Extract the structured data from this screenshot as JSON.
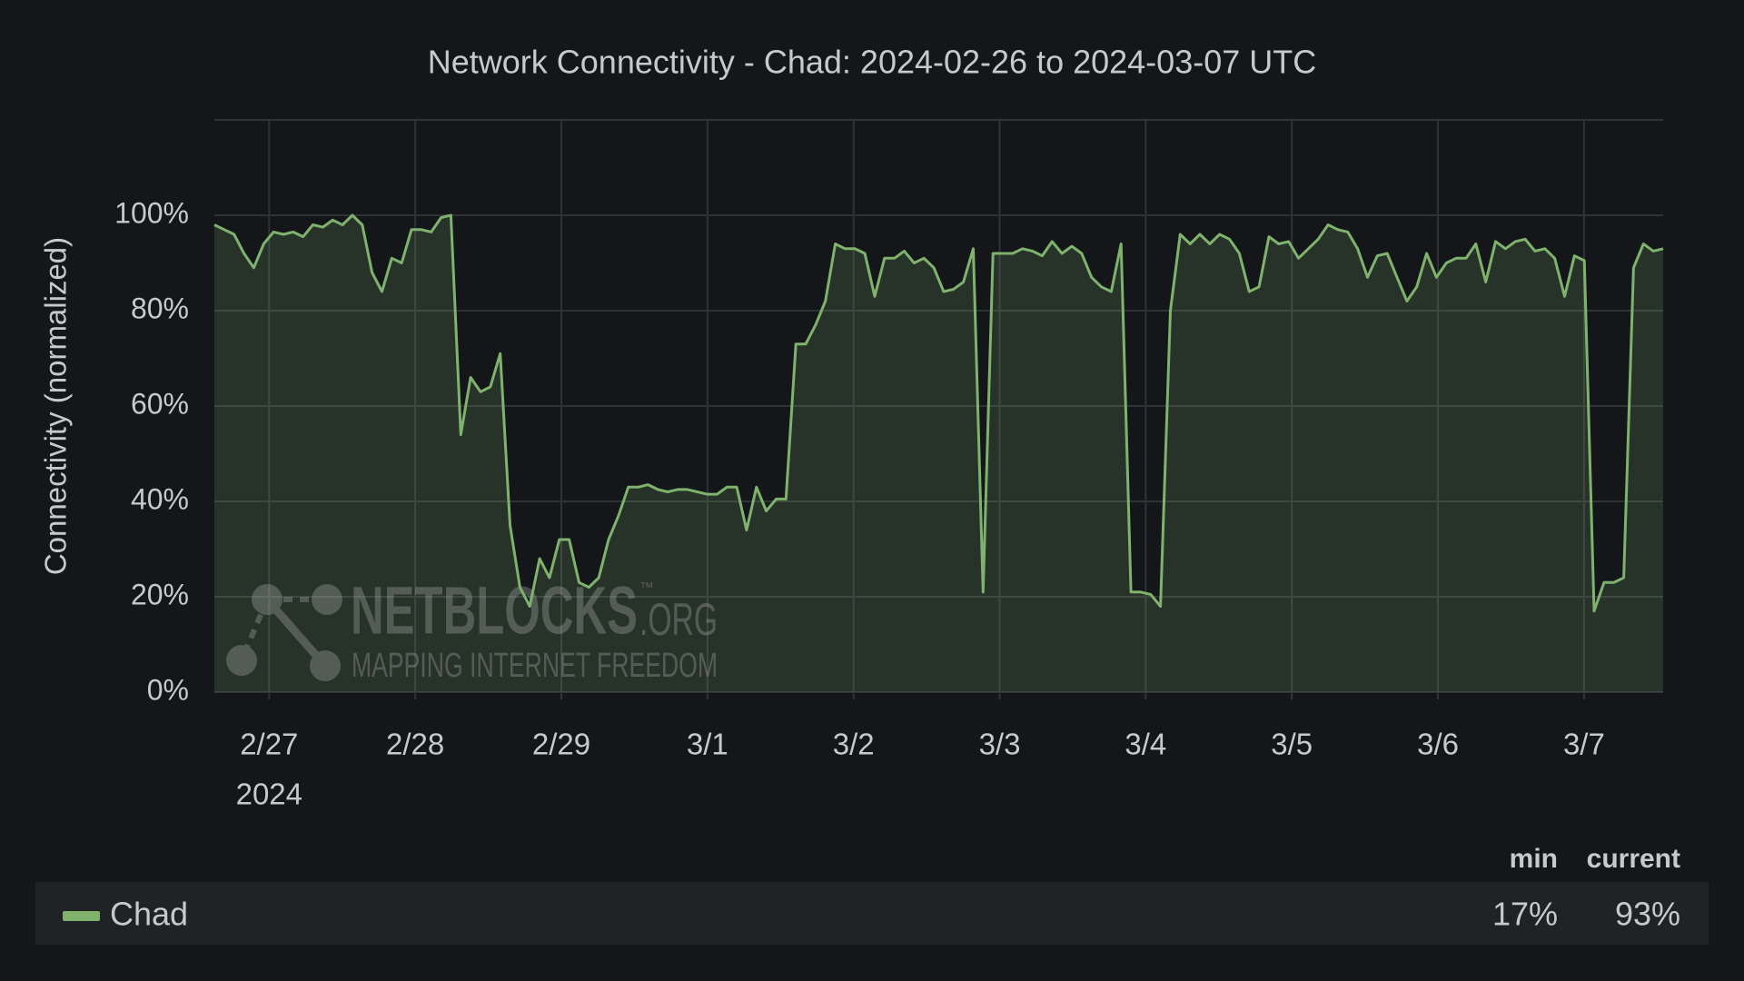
{
  "chart_data": {
    "type": "line",
    "title": "Network Connectivity - Chad: 2024-02-26 to 2024-03-07 UTC",
    "y_label": "Connectivity (normalized)",
    "xlim": [
      "2024-02-26T15:00Z",
      "2024-03-07T13:00Z"
    ],
    "xticks": [
      {
        "value": "2024-02-27",
        "label": "2/27"
      },
      {
        "value": "2024-02-28",
        "label": "2/28"
      },
      {
        "value": "2024-02-29",
        "label": "2/29"
      },
      {
        "value": "2024-03-01",
        "label": "3/1"
      },
      {
        "value": "2024-03-02",
        "label": "3/2"
      },
      {
        "value": "2024-03-03",
        "label": "3/3"
      },
      {
        "value": "2024-03-04",
        "label": "3/4"
      },
      {
        "value": "2024-03-05",
        "label": "3/5"
      },
      {
        "value": "2024-03-06",
        "label": "3/6"
      },
      {
        "value": "2024-03-07",
        "label": "3/7"
      }
    ],
    "x_year_label": "2024",
    "ylim": [
      0,
      120
    ],
    "yticks": [
      {
        "value": 0,
        "label": "0%"
      },
      {
        "value": 20,
        "label": "20%"
      },
      {
        "value": 40,
        "label": "40%"
      },
      {
        "value": 60,
        "label": "60%"
      },
      {
        "value": 80,
        "label": "80%"
      },
      {
        "value": 100,
        "label": "100%"
      }
    ],
    "grid": true,
    "series": [
      {
        "name": "Chad",
        "color": "#7eb26d",
        "values": [
          98,
          97,
          96,
          92,
          89,
          94,
          96.5,
          96,
          96.5,
          95.5,
          98,
          97.5,
          99,
          98,
          100,
          98,
          88,
          84,
          91,
          90,
          97,
          97,
          96.5,
          99.5,
          100,
          54,
          66,
          63,
          64,
          71,
          35,
          22,
          18,
          28,
          24,
          32,
          32,
          23,
          22,
          24,
          32,
          37,
          43,
          43,
          43.5,
          42.5,
          42,
          42.5,
          42.5,
          42,
          41.5,
          41.5,
          43,
          43,
          34,
          43,
          38,
          40.5,
          40.5,
          73,
          73,
          77,
          82,
          94,
          93,
          93,
          92,
          83,
          91,
          91,
          92.5,
          90,
          91,
          89,
          84,
          84.5,
          86,
          93,
          21,
          92,
          92,
          92,
          93,
          92.5,
          91.5,
          94.5,
          92,
          93.5,
          92,
          87,
          85,
          84,
          94,
          21,
          21,
          20.5,
          18,
          80,
          96,
          94,
          96,
          94,
          96,
          95,
          92,
          84,
          85,
          95.5,
          94,
          94.5,
          91,
          93,
          95,
          98,
          97,
          96.5,
          93,
          87,
          91.5,
          92,
          87,
          82,
          85,
          92,
          87,
          90,
          91,
          91,
          94,
          86,
          94.5,
          93,
          94.5,
          95,
          92.5,
          93,
          91,
          83,
          91.5,
          90.5,
          17,
          23,
          23,
          24,
          89,
          94,
          92.5,
          93
        ]
      }
    ],
    "legend": {
      "headers": [
        "min",
        "current"
      ],
      "values": [
        17,
        93
      ],
      "value_labels": [
        "17%",
        "93%"
      ]
    },
    "watermark": {
      "name": "NETBLOCKS",
      "tld": ".ORG",
      "tm": "™",
      "tagline": "MAPPING INTERNET FREEDOM"
    }
  }
}
